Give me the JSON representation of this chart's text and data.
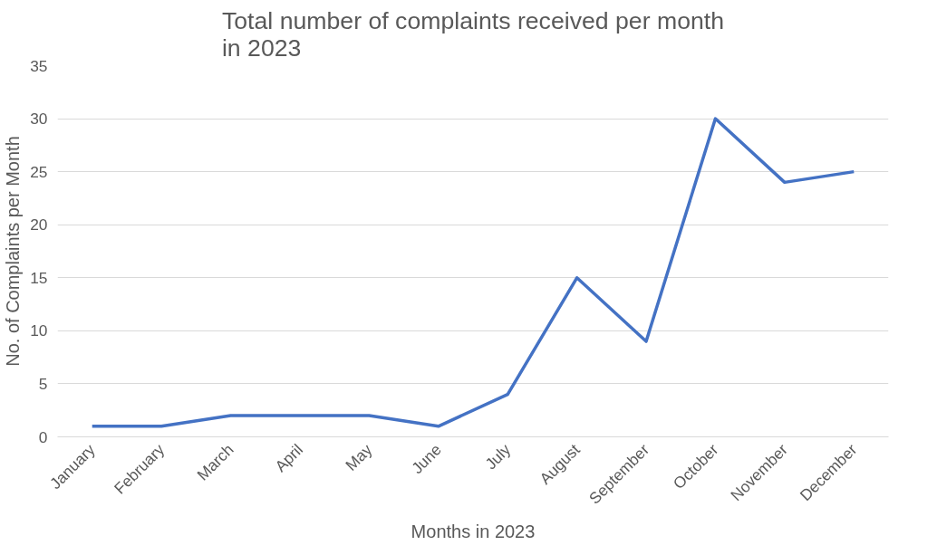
{
  "chart_data": {
    "type": "line",
    "title": "Total number of complaints received per month in 2023",
    "xlabel": "Months in 2023",
    "ylabel": "No. of Complaints per Month",
    "categories": [
      "January",
      "February",
      "March",
      "April",
      "May",
      "June",
      "July",
      "August",
      "September",
      "October",
      "November",
      "December"
    ],
    "series": [
      {
        "color": "#4472c4",
        "values": [
          1,
          1,
          2,
          2,
          2,
          1,
          4,
          15,
          9,
          30,
          24,
          25
        ]
      }
    ],
    "ylim": [
      0,
      35
    ],
    "yticks": [
      0,
      5,
      10,
      15,
      20,
      25,
      30,
      35
    ],
    "grid": "y",
    "marker": "none",
    "line_style": "solid"
  }
}
